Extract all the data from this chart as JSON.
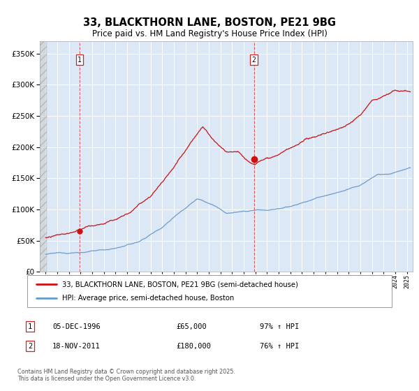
{
  "title": "33, BLACKTHORN LANE, BOSTON, PE21 9BG",
  "subtitle": "Price paid vs. HM Land Registry's House Price Index (HPI)",
  "ylim": [
    0,
    370000
  ],
  "yticks": [
    0,
    50000,
    100000,
    150000,
    200000,
    250000,
    300000,
    350000
  ],
  "xlim_left": 1993.5,
  "xlim_right": 2025.5,
  "hatch_end": 1994.08,
  "plot_bg": "#dce8f5",
  "line1_color": "#cc1111",
  "line2_color": "#6699cc",
  "marker1_x": 1996.92,
  "marker1_y": 65000,
  "marker2_x": 2011.88,
  "marker2_y": 180000,
  "legend1": "33, BLACKTHORN LANE, BOSTON, PE21 9BG (semi-detached house)",
  "legend2": "HPI: Average price, semi-detached house, Boston",
  "note1_num": "1",
  "note1_date": "05-DEC-1996",
  "note1_price": "£65,000",
  "note1_hpi": "97% ↑ HPI",
  "note2_num": "2",
  "note2_date": "18-NOV-2011",
  "note2_price": "£180,000",
  "note2_hpi": "76% ↑ HPI",
  "footer": "Contains HM Land Registry data © Crown copyright and database right 2025.\nThis data is licensed under the Open Government Licence v3.0.",
  "title_fontsize": 10.5,
  "subtitle_fontsize": 8.5
}
